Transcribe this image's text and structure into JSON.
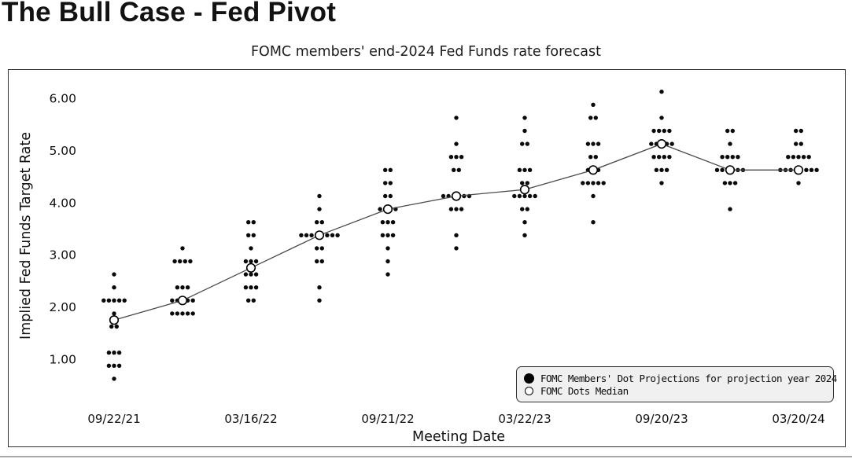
{
  "header": {
    "title": "The Bull Case - Fed Pivot"
  },
  "chart": {
    "title": "FOMC members' end-2024 Fed Funds rate forecast",
    "x_axis_label": "Meeting Date",
    "y_axis_label": "Implied Fed Funds Target Rate",
    "legend": {
      "dots_label": "FOMC Members' Dot Projections for projection year 2024",
      "median_label": "FOMC Dots Median"
    }
  },
  "colors": {
    "dot": "#0a0a0a",
    "median_line": "#4a4a4a",
    "median_circle_stroke": "#000000",
    "frame": "#2e2e2e",
    "legend_bg": "#f0f0f0",
    "text": "#111111"
  },
  "chart_data": {
    "type": "scatter",
    "title": "FOMC members' end-2024 Fed Funds rate forecast",
    "xlabel": "Meeting Date",
    "ylabel": "Implied Fed Funds Target Rate",
    "ylim": [
      0.3,
      6.4
    ],
    "y_ticks": [
      6.0,
      5.0,
      4.0,
      3.0,
      2.0,
      1.0
    ],
    "y_tick_labels": [
      "6.00",
      "5.00",
      "4.00",
      "3.00",
      "2.00",
      "1.00"
    ],
    "grid": false,
    "legend_position": "bottom-right",
    "series": [
      {
        "name": "FOMC Members' Dot Projections for projection year 2024",
        "marker": "filled-dot"
      },
      {
        "name": "FOMC Dots Median",
        "marker": "open-circle-line"
      }
    ],
    "meetings": [
      {
        "label": "09/22/21",
        "median": 1.75,
        "dots": [
          [
            2.625,
            1
          ],
          [
            2.375,
            1
          ],
          [
            2.125,
            5
          ],
          [
            1.875,
            1
          ],
          [
            1.625,
            2
          ],
          [
            1.125,
            3
          ],
          [
            0.875,
            3
          ],
          [
            0.625,
            1
          ]
        ]
      },
      {
        "label": "",
        "median": 2.125,
        "dots": [
          [
            3.125,
            1
          ],
          [
            2.875,
            4
          ],
          [
            2.375,
            3
          ],
          [
            2.125,
            5
          ],
          [
            1.875,
            5
          ]
        ]
      },
      {
        "label": "03/16/22",
        "median": 2.75,
        "dots": [
          [
            3.625,
            2
          ],
          [
            3.375,
            2
          ],
          [
            3.125,
            1
          ],
          [
            2.875,
            3
          ],
          [
            2.625,
            3
          ],
          [
            2.375,
            3
          ],
          [
            2.125,
            2
          ]
        ]
      },
      {
        "label": "",
        "median": 3.375,
        "dots": [
          [
            4.125,
            1
          ],
          [
            3.875,
            1
          ],
          [
            3.625,
            2
          ],
          [
            3.375,
            8
          ],
          [
            3.125,
            2
          ],
          [
            2.875,
            2
          ],
          [
            2.375,
            1
          ],
          [
            2.125,
            1
          ]
        ]
      },
      {
        "label": "09/21/22",
        "median": 3.875,
        "dots": [
          [
            4.625,
            2
          ],
          [
            4.375,
            2
          ],
          [
            4.125,
            2
          ],
          [
            3.875,
            4
          ],
          [
            3.625,
            3
          ],
          [
            3.375,
            3
          ],
          [
            3.125,
            1
          ],
          [
            2.875,
            1
          ],
          [
            2.625,
            1
          ]
        ]
      },
      {
        "label": "",
        "median": 4.125,
        "dots": [
          [
            5.625,
            1
          ],
          [
            5.125,
            1
          ],
          [
            4.875,
            3
          ],
          [
            4.625,
            2
          ],
          [
            4.125,
            6
          ],
          [
            3.875,
            3
          ],
          [
            3.375,
            1
          ],
          [
            3.125,
            1
          ]
        ]
      },
      {
        "label": "03/22/23",
        "median": 4.25,
        "dots": [
          [
            5.625,
            1
          ],
          [
            5.375,
            1
          ],
          [
            5.125,
            2
          ],
          [
            4.625,
            3
          ],
          [
            4.375,
            2
          ],
          [
            4.125,
            5
          ],
          [
            3.875,
            2
          ],
          [
            3.625,
            1
          ],
          [
            3.375,
            1
          ]
        ]
      },
      {
        "label": "",
        "median": 4.625,
        "dots": [
          [
            5.875,
            1
          ],
          [
            5.625,
            2
          ],
          [
            5.125,
            3
          ],
          [
            4.875,
            2
          ],
          [
            4.625,
            3
          ],
          [
            4.375,
            5
          ],
          [
            4.125,
            1
          ],
          [
            3.625,
            1
          ]
        ]
      },
      {
        "label": "09/20/23",
        "median": 5.125,
        "dots": [
          [
            6.125,
            1
          ],
          [
            5.625,
            1
          ],
          [
            5.375,
            4
          ],
          [
            5.125,
            5
          ],
          [
            4.875,
            4
          ],
          [
            4.625,
            3
          ],
          [
            4.375,
            1
          ]
        ]
      },
      {
        "label": "",
        "median": 4.625,
        "dots": [
          [
            5.375,
            2
          ],
          [
            5.125,
            1
          ],
          [
            4.875,
            4
          ],
          [
            4.625,
            6
          ],
          [
            4.375,
            3
          ],
          [
            3.875,
            1
          ]
        ]
      },
      {
        "label": "03/20/24",
        "median": 4.625,
        "dots": [
          [
            5.375,
            2
          ],
          [
            5.125,
            2
          ],
          [
            4.875,
            5
          ],
          [
            4.625,
            8
          ],
          [
            4.375,
            1
          ]
        ]
      }
    ]
  }
}
